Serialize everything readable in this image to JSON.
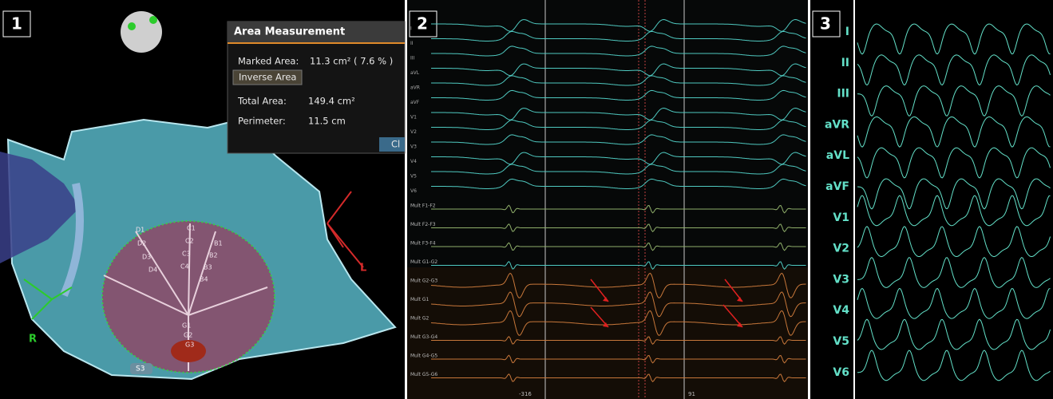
{
  "panel_numbers": [
    "1",
    "2",
    "3"
  ],
  "area_dialog": {
    "title": "Area Measurement",
    "marked_area_label": "Marked Area:",
    "marked_area_value": "11.3 cm² ( 7.6 % )",
    "inverse_button": "Inverse Area",
    "total_area_label": "Total Area:",
    "total_area_value": "149.4 cm²",
    "perimeter_label": "Perimeter:",
    "perimeter_value": "11.5 cm",
    "close_button": "Cl"
  },
  "map_labels": {
    "right": "R",
    "left": "L",
    "spline": "S3",
    "electrodes": [
      "D1",
      "C1",
      "B1",
      "D2",
      "C2",
      "B2",
      "D3",
      "C3",
      "B3",
      "D4",
      "C4",
      "B4",
      "G1",
      "G2",
      "G3"
    ]
  },
  "egm": {
    "surface_leads": [
      "I",
      "II",
      "III",
      "aVL",
      "aVR",
      "aVF",
      "V1",
      "V2",
      "V3",
      "V4",
      "V5",
      "V6"
    ],
    "multi_leads": [
      "Mult F1-F2",
      "Mult F2-F3",
      "Mult F3-F4",
      "Mult G1-G2",
      "Mult G2-G3",
      "Mult G1",
      "Mult G2",
      "Mult G3-G4",
      "Mult G4-G5",
      "Mult G5-G6"
    ],
    "time_labels": [
      "-316",
      "91"
    ]
  },
  "ecg": {
    "leads": [
      "I",
      "II",
      "III",
      "aVR",
      "aVL",
      "aVF",
      "V1",
      "V2",
      "V3",
      "V4",
      "V5",
      "V6"
    ]
  }
}
